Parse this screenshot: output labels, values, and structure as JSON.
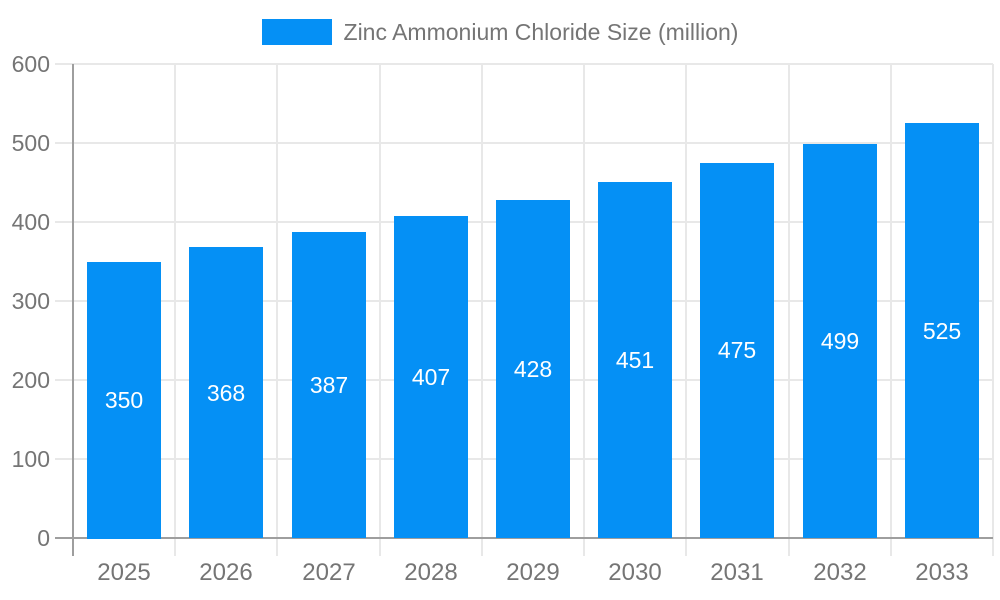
{
  "chart_data": {
    "type": "bar",
    "title": "Zinc Ammonium Chloride Size (million)",
    "legend": [
      "Zinc Ammonium Chloride Size (million)"
    ],
    "legend_position": "top-center",
    "categories": [
      "2025",
      "2026",
      "2027",
      "2028",
      "2029",
      "2030",
      "2031",
      "2032",
      "2033"
    ],
    "series": [
      {
        "name": "Zinc Ammonium Chloride Size (million)",
        "values": [
          350,
          368,
          387,
          407,
          428,
          451,
          475,
          499,
          525
        ]
      }
    ],
    "value_labels": [
      350,
      368,
      387,
      407,
      428,
      451,
      475,
      499,
      525
    ],
    "value_label_position": "inside-center",
    "xlabel": "",
    "ylabel": "",
    "ylim": [
      0,
      600
    ],
    "yticks": [
      0,
      100,
      200,
      300,
      400,
      500,
      600
    ],
    "grid": "both",
    "colors": {
      "bar": "#0590F5",
      "grid": "#E8E8E8",
      "axis": "#9E9E9E",
      "tick_text": "#757575",
      "legend_text": "#757575",
      "value_label_text": "#FFFFFF",
      "background": "#FFFFFF"
    }
  }
}
